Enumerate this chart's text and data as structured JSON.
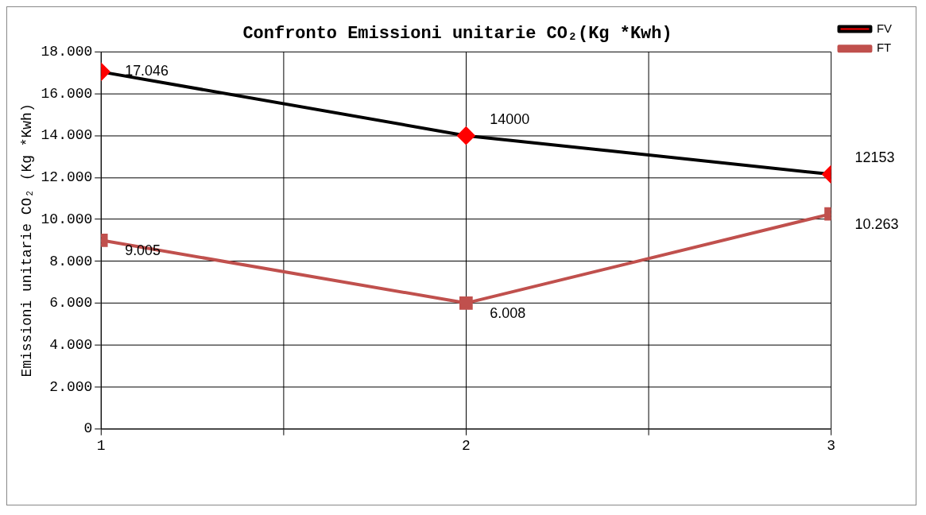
{
  "chart_data": {
    "type": "line",
    "title": "Confronto Emissioni unitarie CO₂(Kg *Kwh)",
    "ylabel": "Emissioni unitarie CO₂ (Kg *Kwh)",
    "x": [
      1,
      2,
      3
    ],
    "xlim": [
      1,
      3
    ],
    "xticks": [
      1,
      {
        "value": 1.5,
        "label": null
      },
      2,
      {
        "value": 2.5,
        "label": null
      },
      3
    ],
    "ylim": [
      0,
      18000
    ],
    "yticks": [
      0,
      {
        "value": 2000,
        "label": "2.000"
      },
      {
        "value": 4000,
        "label": "4.000"
      },
      {
        "value": 6000,
        "label": "6.000"
      },
      {
        "value": 8000,
        "label": "8.000"
      },
      {
        "value": 10000,
        "label": "10.000"
      },
      {
        "value": 12000,
        "label": "12.000"
      },
      {
        "value": 14000,
        "label": "14.000"
      },
      {
        "value": 16000,
        "label": "16.000"
      },
      {
        "value": 18000,
        "label": "18.000"
      }
    ],
    "series": [
      {
        "name": "FV",
        "color": "#000000",
        "marker": "diamond",
        "colors": [
          "#ff0000",
          "#ff0000",
          "#ff0000"
        ],
        "values": [
          17046,
          14000,
          12153
        ],
        "value_labels": [
          "17.046",
          "14000",
          "12153"
        ]
      },
      {
        "name": "FT",
        "color": "#c0504d",
        "marker": "square",
        "values": [
          9005,
          6008,
          10263
        ],
        "value_labels": [
          "9.005",
          "6.008",
          "10.263"
        ]
      }
    ],
    "grid": true,
    "legend": "top right",
    "line_style": "solid"
  }
}
